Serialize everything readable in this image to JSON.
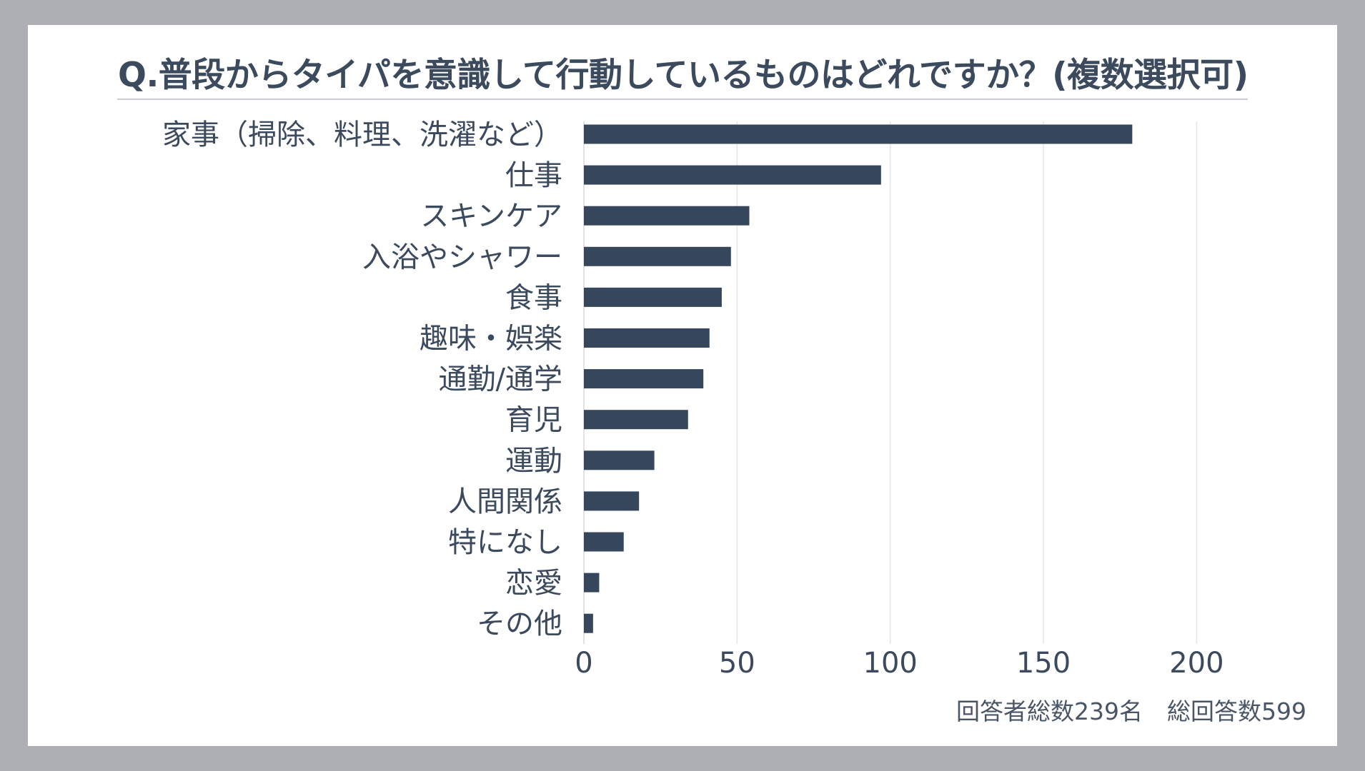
{
  "chart_data": {
    "type": "bar",
    "orientation": "horizontal",
    "title": "Q.普段からタイパを意識して行動しているものはどれですか？(複数選択可)",
    "categories": [
      "家事（掃除、料理、洗濯など）",
      "仕事",
      "スキンケア",
      "入浴やシャワー",
      "食事",
      "趣味・娯楽",
      "通勤/通学",
      "育児",
      "運動",
      "人間関係",
      "特になし",
      "恋愛",
      "その他"
    ],
    "values": [
      179,
      97,
      54,
      48,
      45,
      41,
      39,
      34,
      23,
      18,
      13,
      5,
      3
    ],
    "xlim": [
      0,
      220
    ],
    "xticks": [
      0,
      50,
      100,
      150,
      200
    ],
    "xlabel": "",
    "ylabel": "",
    "grid": true,
    "bar_color": "#35465d",
    "grid_color": "#e3e5e8"
  },
  "footer": {
    "respondents": "回答者総数239名",
    "total_answers": "総回答数599"
  }
}
